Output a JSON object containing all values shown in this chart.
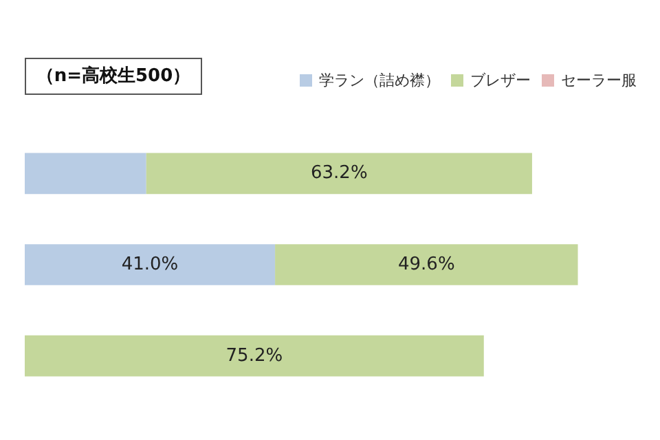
{
  "chart_data": {
    "type": "bar",
    "orientation": "horizontal",
    "stacked": true,
    "categories": [
      null,
      null,
      null
    ],
    "annotations": [
      "（n=高校生500）"
    ],
    "series": [
      {
        "name": "学ラン（詰め襟）",
        "color": "#b8cce4",
        "values": [
          19.9,
          41.0,
          null
        ],
        "value_labels": [
          null,
          "41.0%",
          null
        ]
      },
      {
        "name": "ブレザー",
        "color": "#c4d79b",
        "values": [
          63.2,
          49.6,
          75.2
        ],
        "value_labels": [
          "63.2%",
          "49.6%",
          "75.2%"
        ]
      },
      {
        "name": "セーラー服",
        "color": "#e6b9b8",
        "values": [
          null,
          null,
          null
        ],
        "value_labels": [
          null,
          null,
          null
        ]
      }
    ],
    "legend": "top right",
    "tick_labels": false
  }
}
